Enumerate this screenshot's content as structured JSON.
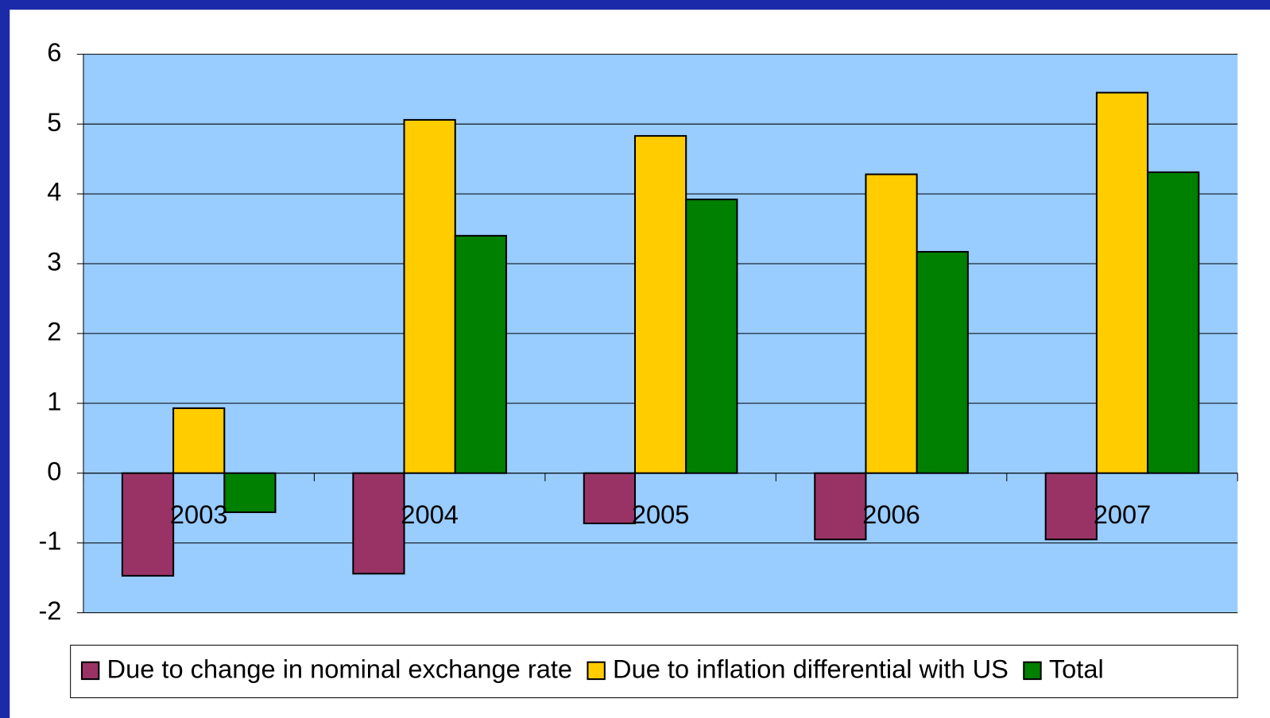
{
  "chart_data": {
    "type": "bar",
    "categories": [
      "2003",
      "2004",
      "2005",
      "2006",
      "2007"
    ],
    "series": [
      {
        "name": "Due to change in nominal exchange rate",
        "color": "#993366",
        "values": [
          -1.47,
          -1.44,
          -0.72,
          -0.95,
          -0.95
        ]
      },
      {
        "name": "Due to inflation differential with US",
        "color": "#ffcc00",
        "values": [
          0.93,
          5.06,
          4.83,
          4.28,
          5.45
        ]
      },
      {
        "name": "Total",
        "color": "#008000",
        "values": [
          -0.56,
          3.4,
          3.92,
          3.17,
          4.31
        ]
      }
    ],
    "ylim": [
      -2,
      6
    ],
    "yticks": [
      -2,
      -1,
      0,
      1,
      2,
      3,
      4,
      5,
      6
    ],
    "grid": true,
    "legend": "bottom"
  }
}
